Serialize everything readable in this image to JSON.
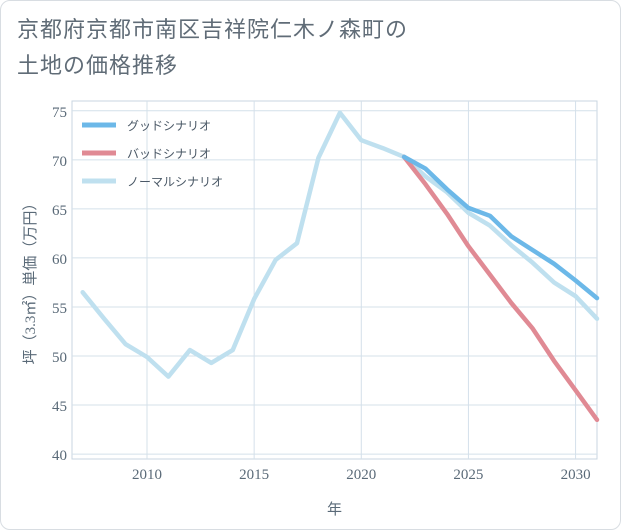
{
  "title": {
    "line1": "京都府京都市南区吉祥院仁木ノ森町の",
    "line2": "土地の価格推移"
  },
  "chart_data": {
    "type": "line",
    "xlabel": "年",
    "ylabel": "坪（3.3㎡）単価（万円）",
    "xlim": [
      2006.5,
      2031
    ],
    "ylim": [
      39.5,
      76
    ],
    "x_ticks": [
      2010,
      2015,
      2020,
      2025,
      2030
    ],
    "y_ticks": [
      40,
      45,
      50,
      55,
      60,
      65,
      70,
      75
    ],
    "grid": true,
    "legend_position": "top-left",
    "series": [
      {
        "name": "グッドシナリオ",
        "color": "#6cb8e8",
        "x": [
          2022,
          2023,
          2024,
          2025,
          2026,
          2027,
          2028,
          2029,
          2030,
          2031
        ],
        "y": [
          70.3,
          69.1,
          67.0,
          65.1,
          64.3,
          62.2,
          60.8,
          59.4,
          57.7,
          55.9
        ]
      },
      {
        "name": "バッドシナリオ",
        "color": "#e08a94",
        "x": [
          2022,
          2023,
          2024,
          2025,
          2026,
          2027,
          2028,
          2029,
          2030,
          2031
        ],
        "y": [
          70.3,
          67.5,
          64.5,
          61.2,
          58.3,
          55.4,
          52.8,
          49.5,
          46.5,
          43.5
        ]
      },
      {
        "name": "ノーマルシナリオ",
        "color": "#bfe0ef",
        "x": [
          2007,
          2008,
          2009,
          2010,
          2011,
          2012,
          2013,
          2014,
          2015,
          2016,
          2017,
          2018,
          2019,
          2020,
          2021,
          2022,
          2023,
          2024,
          2025,
          2026,
          2027,
          2028,
          2029,
          2030,
          2031
        ],
        "y": [
          56.5,
          53.8,
          51.2,
          49.9,
          47.9,
          50.6,
          49.3,
          50.6,
          55.8,
          59.8,
          61.5,
          70.2,
          74.8,
          72.0,
          71.2,
          70.3,
          68.3,
          66.7,
          64.6,
          63.3,
          61.3,
          59.5,
          57.5,
          56.1,
          53.8
        ]
      }
    ]
  }
}
